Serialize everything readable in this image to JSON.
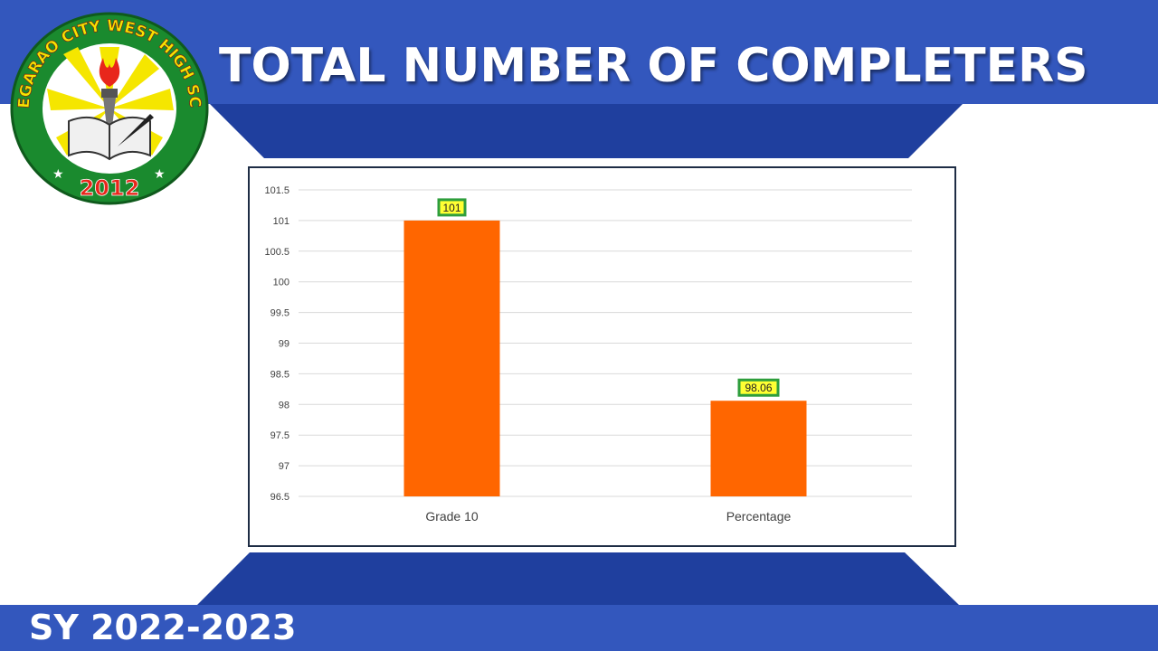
{
  "slide": {
    "title": "TOTAL NUMBER OF COMPLETERS",
    "footer_text": "SY 2022-2023",
    "logo": {
      "text_arc": "TUGUEGARAO CITY WEST HIGH SCHOOL",
      "year": "2012",
      "icon": "torch-and-book-icon"
    },
    "colors": {
      "band": "#3357bd",
      "trapezoid": "#1f3f9e",
      "bar": "#ff6600",
      "label_fill": "#ffff33",
      "label_border": "#2e9e3c"
    }
  },
  "chart_data": {
    "type": "bar",
    "categories": [
      "Grade 10",
      "Percentage"
    ],
    "values": [
      101,
      98.06
    ],
    "data_labels": [
      "101",
      "98.06"
    ],
    "ylim": [
      96.5,
      101.5
    ],
    "yticks": [
      "101.5",
      "101",
      "100.5",
      "100",
      "99.5",
      "99",
      "98.5",
      "98",
      "97.5",
      "97",
      "96.5"
    ],
    "grid": true,
    "legend": "none"
  }
}
